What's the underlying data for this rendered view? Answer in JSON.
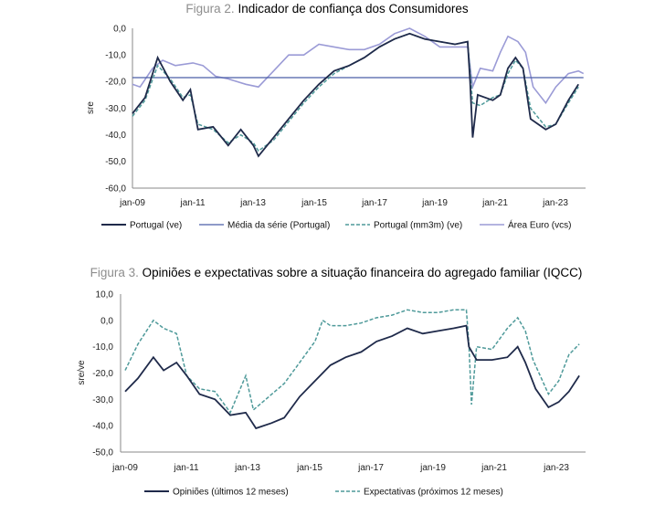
{
  "charts": [
    {
      "figure_label": "Figura 2.",
      "title": "Indicador de confiança dos Consumidores",
      "ylabel": "sre",
      "y_ticks": [
        "0,0",
        "-10,0",
        "-20,0",
        "-30,0",
        "-40,0",
        "-50,0",
        "-60,0"
      ],
      "x_ticks": [
        "jan-09",
        "jan-11",
        "jan-13",
        "jan-15",
        "jan-17",
        "jan-19",
        "jan-21",
        "jan-23"
      ],
      "legend": [
        "Portugal (ve)",
        "Média da série (Portugal)",
        "Portugal (mm3m) (ve)",
        "Área Euro (vcs)"
      ]
    },
    {
      "figure_label": "Figura 3.",
      "title": "Opiniões e expectativas sobre a situação financeira do agregado familiar (IQCC)",
      "ylabel": "sre/ve",
      "y_ticks": [
        "10,0",
        "0,0",
        "-10,0",
        "-20,0",
        "-30,0",
        "-40,0",
        "-50,0"
      ],
      "x_ticks": [
        "jan-09",
        "jan-11",
        "jan-13",
        "jan-15",
        "jan-17",
        "jan-19",
        "jan-21",
        "jan-23"
      ],
      "legend": [
        "Opiniões (últimos 12 meses)",
        "Expectativas (próximos 12 meses)"
      ]
    }
  ],
  "colors": {
    "navy": "#1f2a4a",
    "mean": "#4a5ea8",
    "teal": "#4f9a9a",
    "lavender": "#9b9bd6",
    "title_accent": "#8e8e8e"
  },
  "chart_data": [
    {
      "type": "line",
      "title": "Indicador de confiança dos Consumidores",
      "ylabel": "sre",
      "ylim": [
        -60,
        0
      ],
      "xlim": [
        "2009-01",
        "2023-12"
      ],
      "grid": false,
      "legend_position": "bottom",
      "series": [
        {
          "name": "Portugal (ve)",
          "color": "#1f2a4a",
          "style": "solid",
          "points": [
            [
              "2009-01",
              -32
            ],
            [
              "2009-06",
              -26
            ],
            [
              "2009-11",
              -11
            ],
            [
              "2010-04",
              -20
            ],
            [
              "2010-09",
              -27
            ],
            [
              "2010-12",
              -23
            ],
            [
              "2011-03",
              -38
            ],
            [
              "2011-09",
              -37
            ],
            [
              "2012-03",
              -44
            ],
            [
              "2012-08",
              -38
            ],
            [
              "2013-01",
              -44
            ],
            [
              "2013-03",
              -48
            ],
            [
              "2013-09",
              -41
            ],
            [
              "2014-03",
              -34
            ],
            [
              "2014-09",
              -27
            ],
            [
              "2015-03",
              -21
            ],
            [
              "2015-09",
              -16
            ],
            [
              "2016-03",
              -14
            ],
            [
              "2016-09",
              -11
            ],
            [
              "2017-03",
              -7
            ],
            [
              "2017-09",
              -4
            ],
            [
              "2018-03",
              -2
            ],
            [
              "2018-09",
              -4
            ],
            [
              "2019-03",
              -5
            ],
            [
              "2019-09",
              -6
            ],
            [
              "2020-02",
              -5
            ],
            [
              "2020-03",
              -20
            ],
            [
              "2020-04",
              -41
            ],
            [
              "2020-06",
              -25
            ],
            [
              "2020-12",
              -27
            ],
            [
              "2021-03",
              -25
            ],
            [
              "2021-06",
              -15
            ],
            [
              "2021-09",
              -11
            ],
            [
              "2021-12",
              -15
            ],
            [
              "2022-03",
              -34
            ],
            [
              "2022-09",
              -38
            ],
            [
              "2023-01",
              -36
            ],
            [
              "2023-06",
              -27
            ],
            [
              "2023-10",
              -21
            ]
          ]
        },
        {
          "name": "Média da série (Portugal)",
          "color": "#4a5ea8",
          "style": "solid",
          "points": [
            [
              "2009-01",
              -18.5
            ],
            [
              "2023-12",
              -18.5
            ]
          ]
        },
        {
          "name": "Portugal (mm3m) (ve)",
          "color": "#4f9a9a",
          "style": "dashed",
          "points": [
            [
              "2009-01",
              -33
            ],
            [
              "2009-06",
              -27
            ],
            [
              "2009-11",
              -14
            ],
            [
              "2010-04",
              -19
            ],
            [
              "2010-09",
              -26
            ],
            [
              "2010-12",
              -25
            ],
            [
              "2011-03",
              -36
            ],
            [
              "2011-09",
              -38
            ],
            [
              "2012-03",
              -43
            ],
            [
              "2012-08",
              -40
            ],
            [
              "2013-01",
              -43
            ],
            [
              "2013-03",
              -46
            ],
            [
              "2013-09",
              -42
            ],
            [
              "2014-03",
              -35
            ],
            [
              "2014-09",
              -28
            ],
            [
              "2015-03",
              -22
            ],
            [
              "2015-09",
              -17
            ],
            [
              "2016-03",
              -14
            ],
            [
              "2016-09",
              -11
            ],
            [
              "2017-03",
              -7
            ],
            [
              "2017-09",
              -4
            ],
            [
              "2018-03",
              -2
            ],
            [
              "2018-09",
              -4
            ],
            [
              "2019-03",
              -5
            ],
            [
              "2019-09",
              -6
            ],
            [
              "2020-02",
              -5
            ],
            [
              "2020-04",
              -28
            ],
            [
              "2020-07",
              -29
            ],
            [
              "2020-12",
              -26
            ],
            [
              "2021-03",
              -25
            ],
            [
              "2021-06",
              -17
            ],
            [
              "2021-09",
              -12
            ],
            [
              "2021-12",
              -15
            ],
            [
              "2022-03",
              -30
            ],
            [
              "2022-09",
              -37
            ],
            [
              "2023-01",
              -36
            ],
            [
              "2023-06",
              -28
            ],
            [
              "2023-10",
              -22
            ]
          ]
        },
        {
          "name": "Área Euro (vcs)",
          "color": "#9b9bd6",
          "style": "solid",
          "points": [
            [
              "2009-01",
              -21
            ],
            [
              "2009-04",
              -22
            ],
            [
              "2009-09",
              -15
            ],
            [
              "2010-01",
              -12
            ],
            [
              "2010-06",
              -14
            ],
            [
              "2011-01",
              -13
            ],
            [
              "2011-05",
              -14
            ],
            [
              "2011-10",
              -18
            ],
            [
              "2012-03",
              -19
            ],
            [
              "2012-10",
              -21
            ],
            [
              "2013-03",
              -22
            ],
            [
              "2013-09",
              -16
            ],
            [
              "2014-03",
              -10
            ],
            [
              "2014-09",
              -10
            ],
            [
              "2015-03",
              -6
            ],
            [
              "2015-09",
              -7
            ],
            [
              "2016-03",
              -8
            ],
            [
              "2016-09",
              -8
            ],
            [
              "2017-03",
              -6
            ],
            [
              "2017-09",
              -2
            ],
            [
              "2018-03",
              0
            ],
            [
              "2018-09",
              -3
            ],
            [
              "2019-03",
              -7
            ],
            [
              "2019-09",
              -7
            ],
            [
              "2020-02",
              -7
            ],
            [
              "2020-04",
              -22
            ],
            [
              "2020-07",
              -15
            ],
            [
              "2020-12",
              -16
            ],
            [
              "2021-03",
              -9
            ],
            [
              "2021-06",
              -3
            ],
            [
              "2021-10",
              -5
            ],
            [
              "2022-01",
              -9
            ],
            [
              "2022-04",
              -22
            ],
            [
              "2022-09",
              -28
            ],
            [
              "2023-01",
              -22
            ],
            [
              "2023-06",
              -17
            ],
            [
              "2023-10",
              -16
            ],
            [
              "2023-12",
              -17
            ]
          ]
        }
      ]
    },
    {
      "type": "line",
      "title": "Opiniões e expectativas sobre a situação financeira do agregado familiar (IQCC)",
      "ylabel": "sre/ve",
      "ylim": [
        -50,
        10
      ],
      "xlim": [
        "2009-01",
        "2023-12"
      ],
      "grid": false,
      "legend_position": "bottom",
      "series": [
        {
          "name": "Opiniões (últimos 12 meses)",
          "color": "#1f2a4a",
          "style": "solid",
          "points": [
            [
              "2009-01",
              -27
            ],
            [
              "2009-06",
              -22
            ],
            [
              "2009-12",
              -14
            ],
            [
              "2010-04",
              -19
            ],
            [
              "2010-09",
              -16
            ],
            [
              "2011-01",
              -21
            ],
            [
              "2011-06",
              -28
            ],
            [
              "2011-12",
              -30
            ],
            [
              "2012-06",
              -36
            ],
            [
              "2012-12",
              -35
            ],
            [
              "2013-04",
              -41
            ],
            [
              "2013-10",
              -39
            ],
            [
              "2014-03",
              -37
            ],
            [
              "2014-09",
              -29
            ],
            [
              "2015-03",
              -23
            ],
            [
              "2015-09",
              -17
            ],
            [
              "2016-03",
              -14
            ],
            [
              "2016-09",
              -12
            ],
            [
              "2017-03",
              -8
            ],
            [
              "2017-09",
              -6
            ],
            [
              "2018-03",
              -3
            ],
            [
              "2018-09",
              -5
            ],
            [
              "2019-03",
              -4
            ],
            [
              "2019-09",
              -3
            ],
            [
              "2020-02",
              -2
            ],
            [
              "2020-03",
              -10
            ],
            [
              "2020-06",
              -15
            ],
            [
              "2020-12",
              -15
            ],
            [
              "2021-06",
              -14
            ],
            [
              "2021-10",
              -10
            ],
            [
              "2022-01",
              -16
            ],
            [
              "2022-05",
              -26
            ],
            [
              "2022-10",
              -33
            ],
            [
              "2023-02",
              -31
            ],
            [
              "2023-06",
              -27
            ],
            [
              "2023-10",
              -21
            ]
          ]
        },
        {
          "name": "Expectativas (próximos 12 meses)",
          "color": "#4f9a9a",
          "style": "dashed",
          "points": [
            [
              "2009-01",
              -19
            ],
            [
              "2009-06",
              -9
            ],
            [
              "2009-12",
              0
            ],
            [
              "2010-04",
              -3
            ],
            [
              "2010-09",
              -5
            ],
            [
              "2011-01",
              -21
            ],
            [
              "2011-06",
              -26
            ],
            [
              "2011-12",
              -27
            ],
            [
              "2012-06",
              -35
            ],
            [
              "2012-12",
              -21
            ],
            [
              "2013-03",
              -34
            ],
            [
              "2013-09",
              -29
            ],
            [
              "2014-03",
              -24
            ],
            [
              "2014-09",
              -16
            ],
            [
              "2015-03",
              -8
            ],
            [
              "2015-06",
              0
            ],
            [
              "2015-09",
              -2
            ],
            [
              "2016-03",
              -2
            ],
            [
              "2016-09",
              -1
            ],
            [
              "2017-03",
              1
            ],
            [
              "2017-09",
              2
            ],
            [
              "2018-03",
              4
            ],
            [
              "2018-09",
              3
            ],
            [
              "2019-03",
              3
            ],
            [
              "2019-09",
              4
            ],
            [
              "2020-02",
              4
            ],
            [
              "2020-03",
              -9
            ],
            [
              "2020-04",
              -32
            ],
            [
              "2020-06",
              -10
            ],
            [
              "2020-12",
              -11
            ],
            [
              "2021-06",
              -3
            ],
            [
              "2021-10",
              1
            ],
            [
              "2022-01",
              -4
            ],
            [
              "2022-04",
              -15
            ],
            [
              "2022-10",
              -28
            ],
            [
              "2023-02",
              -23
            ],
            [
              "2023-06",
              -13
            ],
            [
              "2023-10",
              -9
            ]
          ]
        }
      ]
    }
  ]
}
